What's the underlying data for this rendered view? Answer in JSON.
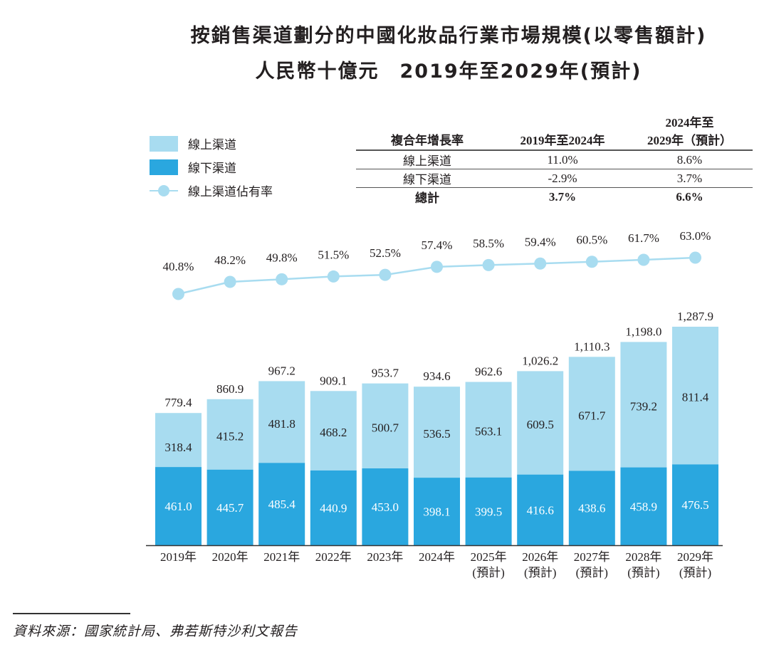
{
  "title": {
    "line1": "按銷售渠道劃分的中國化妝品行業市場規模(以零售額計)",
    "line2": "人民幣十億元　2019年至2029年(預計)"
  },
  "legend": {
    "online": "線上渠道",
    "offline": "線下渠道",
    "share": "線上渠道佔有率"
  },
  "cagr_table": {
    "header": [
      "複合年增長率",
      "2019年至2024年",
      "2024年至 2029年（預計）"
    ],
    "header_col3_line1": "2024年至",
    "header_col3_line2": "2029年（預計）",
    "rows": [
      {
        "label": "線上渠道",
        "v1": "11.0%",
        "v2": "8.6%"
      },
      {
        "label": "線下渠道",
        "v1": "-2.9%",
        "v2": "3.7%"
      },
      {
        "label": "總計",
        "v1": "3.7%",
        "v2": "6.6%"
      }
    ]
  },
  "source": "資料來源：國家統計局、弗若斯特沙利文報告",
  "colors": {
    "online": "#a8dcf0",
    "offline": "#2aa7df",
    "share_line": "#a8dcf0",
    "text": "#231f20"
  },
  "chart_data": {
    "type": "bar",
    "stacked": true,
    "title": "按銷售渠道劃分的中國化妝品行業市場規模(以零售額計) 人民幣十億元 2019年至2029年(預計)",
    "xlabel": "",
    "ylabel": "人民幣十億元",
    "categories": [
      "2019年",
      "2020年",
      "2021年",
      "2022年",
      "2023年",
      "2024年",
      "2025年",
      "2026年",
      "2027年",
      "2028年",
      "2029年"
    ],
    "category_sublabels": [
      "",
      "",
      "",
      "",
      "",
      "",
      "(預計)",
      "(預計)",
      "(預計)",
      "(預計)",
      "(預計)"
    ],
    "series": [
      {
        "name": "線下渠道",
        "values": [
          461.0,
          445.7,
          485.4,
          440.9,
          453.0,
          398.1,
          399.5,
          416.6,
          438.6,
          458.9,
          476.5
        ]
      },
      {
        "name": "線上渠道",
        "values": [
          318.4,
          415.2,
          481.8,
          468.2,
          500.7,
          536.5,
          563.1,
          609.5,
          671.7,
          739.2,
          811.4
        ]
      }
    ],
    "totals": [
      "779.4",
      "860.9",
      "967.2",
      "909.1",
      "953.7",
      "934.6",
      "962.6",
      "1,026.2",
      "1,110.3",
      "1,198.0",
      "1,287.9"
    ],
    "offline_labels": [
      "461.0",
      "445.7",
      "485.4",
      "440.9",
      "453.0",
      "398.1",
      "399.5",
      "416.6",
      "438.6",
      "458.9",
      "476.5"
    ],
    "online_labels": [
      "318.4",
      "415.2",
      "481.8",
      "468.2",
      "500.7",
      "536.5",
      "563.1",
      "609.5",
      "671.7",
      "739.2",
      "811.4"
    ],
    "line_series": {
      "name": "線上渠道佔有率",
      "values": [
        40.8,
        48.2,
        49.8,
        51.5,
        52.5,
        57.4,
        58.5,
        59.4,
        60.5,
        61.7,
        63.0
      ],
      "labels": [
        "40.8%",
        "48.2%",
        "49.8%",
        "51.5%",
        "52.5%",
        "57.4%",
        "58.5%",
        "59.4%",
        "60.5%",
        "61.7%",
        "63.0%"
      ]
    },
    "ylim": [
      0,
      1287.9
    ],
    "grid": false,
    "legend_position": "top-left"
  }
}
